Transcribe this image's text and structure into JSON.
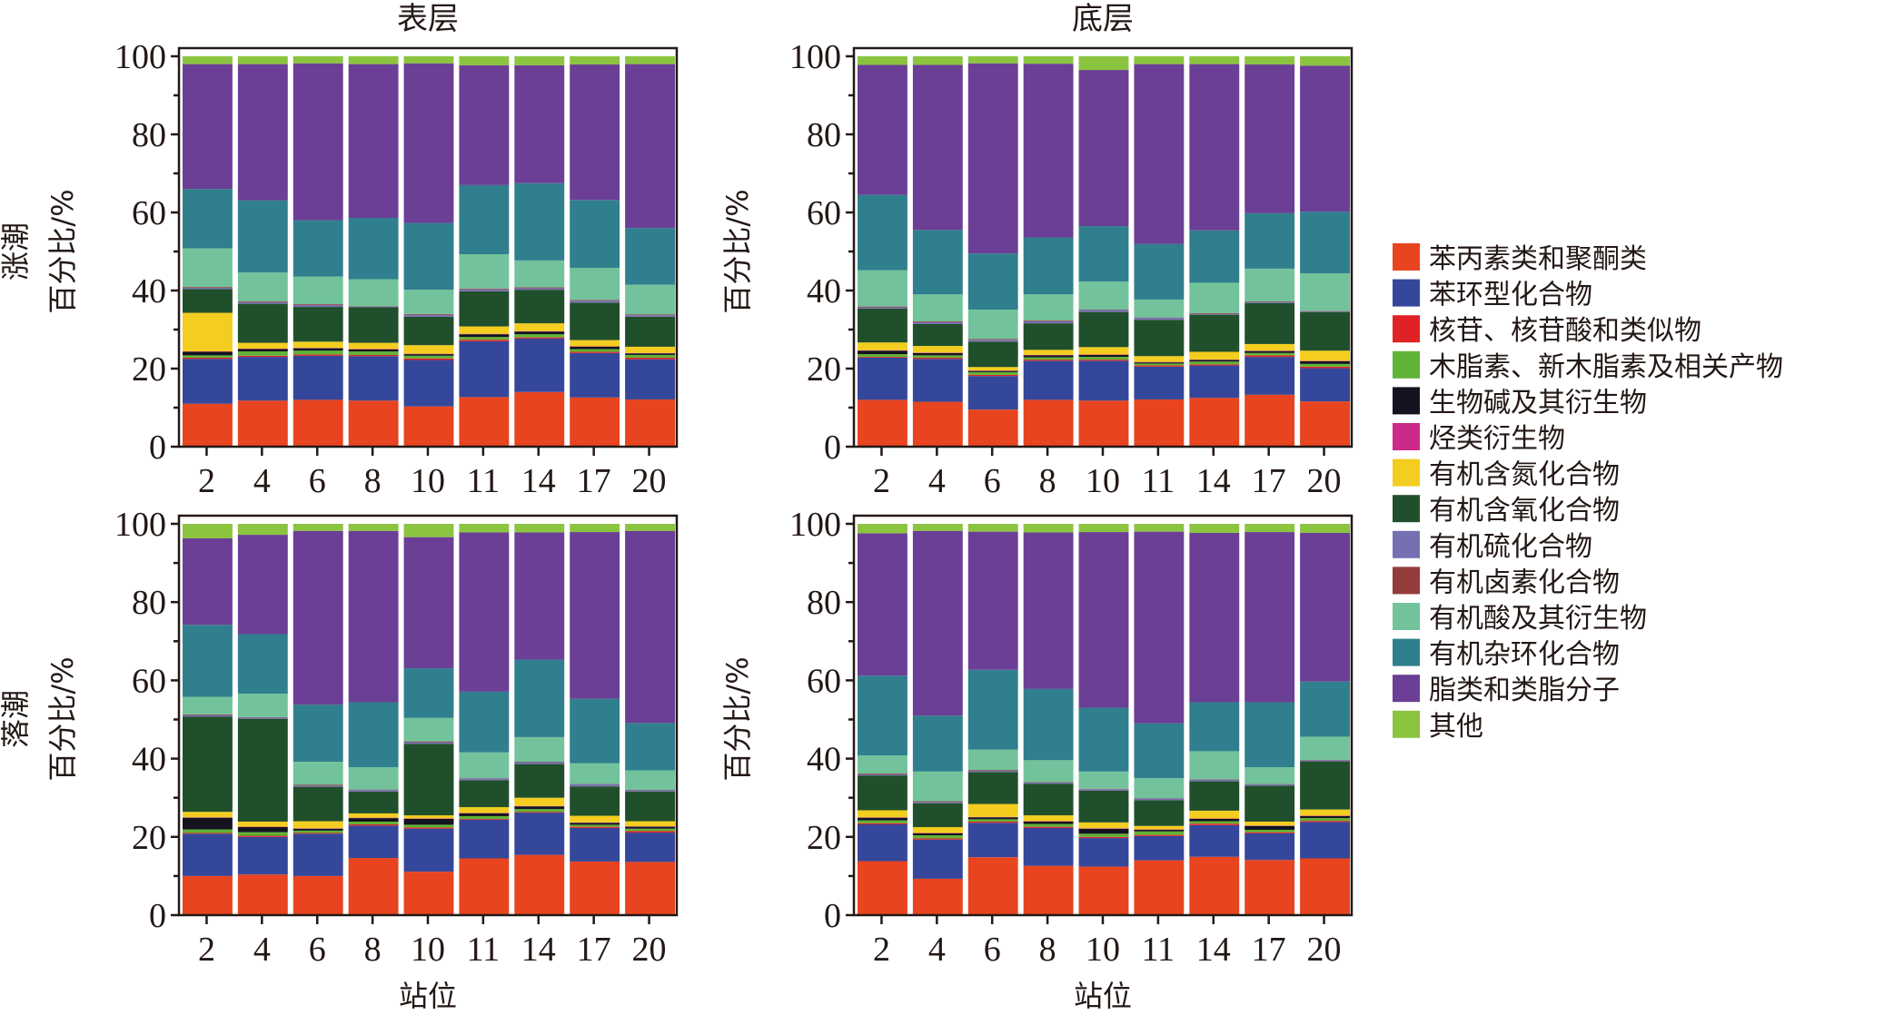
{
  "chart_data": {
    "type": "bar",
    "stacked": true,
    "normalized": true,
    "categories": [
      "2",
      "4",
      "6",
      "8",
      "10",
      "11",
      "14",
      "17",
      "20"
    ],
    "xlabel": "站位",
    "ylabel": "百分比/%",
    "ylim": [
      0,
      100
    ],
    "yticks": [
      "0",
      "20",
      "40",
      "60",
      "80",
      "100"
    ],
    "grid": false,
    "legend_position": "right",
    "column_titles": [
      "表层",
      "底层"
    ],
    "row_titles": [
      "涨潮",
      "落潮"
    ],
    "series_names": [
      "苯丙素类和聚酮类",
      "苯环型化合物",
      "核苷、核苷酸和类似物",
      "木脂素、新木脂素及相关产物",
      "生物碱及其衍生物",
      "烃类衍生物",
      "有机含氮化合物",
      "有机含氧化合物",
      "有机硫化合物",
      "有机卤素化合物",
      "有机酸及其衍生物",
      "有机杂环化合物",
      "脂类和类脂分子",
      "其他"
    ],
    "series_colors": [
      "#e8441f",
      "#35479a",
      "#e02226",
      "#5fb336",
      "#14131f",
      "#cc2a8a",
      "#f3cd1f",
      "#20502b",
      "#7570b2",
      "#933c3b",
      "#72c39b",
      "#307f8e",
      "#6b3f95",
      "#8bc43f"
    ],
    "panels": [
      {
        "title": "涨潮-表层",
        "row": "涨潮",
        "column": "表层",
        "stations": [
          [
            11.0,
            11.5,
            0.3,
            0.6,
            0.9,
            0.1,
            9.9,
            6.1,
            0.3,
            0.2,
            9.9,
            15.2,
            32.0,
            2.0
          ],
          [
            11.8,
            11.2,
            0.3,
            1.1,
            0.6,
            0.1,
            1.5,
            10.0,
            0.4,
            0.2,
            7.4,
            18.5,
            34.9,
            2.0
          ],
          [
            12.0,
            11.3,
            0.3,
            1.0,
            0.6,
            0.1,
            1.6,
            8.9,
            0.5,
            0.2,
            7.1,
            14.4,
            40.2,
            1.8
          ],
          [
            11.8,
            11.4,
            0.3,
            0.9,
            0.5,
            0.1,
            1.6,
            9.1,
            0.2,
            0.1,
            6.9,
            15.7,
            39.4,
            2.0
          ],
          [
            10.3,
            11.9,
            0.4,
            0.7,
            0.4,
            0.1,
            2.2,
            7.3,
            0.5,
            0.2,
            6.2,
            17.1,
            40.9,
            1.8
          ],
          [
            12.7,
            14.3,
            0.4,
            0.7,
            0.7,
            0.1,
            1.9,
            9.0,
            0.5,
            0.2,
            8.8,
            17.7,
            30.7,
            2.3
          ],
          [
            14.0,
            13.7,
            0.3,
            0.8,
            0.7,
            0.1,
            2.0,
            8.6,
            0.4,
            0.2,
            6.9,
            19.8,
            30.2,
            2.3
          ],
          [
            12.6,
            11.4,
            0.3,
            0.7,
            0.6,
            0.1,
            1.6,
            9.6,
            0.5,
            0.2,
            8.2,
            17.4,
            34.7,
            2.1
          ],
          [
            12.1,
            10.3,
            0.4,
            0.7,
            0.4,
            0.1,
            1.6,
            7.7,
            0.4,
            0.2,
            7.6,
            14.5,
            42.0,
            2.0
          ]
        ]
      },
      {
        "title": "涨潮-底层",
        "row": "涨潮",
        "column": "底层",
        "stations": [
          [
            12.0,
            10.8,
            0.2,
            0.7,
            0.9,
            0.1,
            2.0,
            8.7,
            0.3,
            0.2,
            9.3,
            19.3,
            33.3,
            2.2
          ],
          [
            11.5,
            11.0,
            0.3,
            0.6,
            0.6,
            0.1,
            1.7,
            5.6,
            0.5,
            0.2,
            6.9,
            16.5,
            42.3,
            2.2
          ],
          [
            9.5,
            8.6,
            0.3,
            0.7,
            0.3,
            0.1,
            0.9,
            6.5,
            0.5,
            0.2,
            7.5,
            14.4,
            48.7,
            1.8
          ],
          [
            12.0,
            10.0,
            0.3,
            0.6,
            0.5,
            0.1,
            1.3,
            6.8,
            0.5,
            0.2,
            6.7,
            14.6,
            44.5,
            1.9
          ],
          [
            11.8,
            10.2,
            0.3,
            0.7,
            0.5,
            0.1,
            1.9,
            9.0,
            0.5,
            0.1,
            7.2,
            14.2,
            40.0,
            3.5
          ],
          [
            12.1,
            8.4,
            0.3,
            0.5,
            0.3,
            0.1,
            1.5,
            9.3,
            0.5,
            0.1,
            4.6,
            14.2,
            46.1,
            2.0
          ],
          [
            12.5,
            8.3,
            0.3,
            0.7,
            0.4,
            0.1,
            2.0,
            9.5,
            0.2,
            0.2,
            7.8,
            13.4,
            42.6,
            2.0
          ],
          [
            13.3,
            9.7,
            0.4,
            0.6,
            0.5,
            0.1,
            1.7,
            10.5,
            0.3,
            0.1,
            8.4,
            14.2,
            38.1,
            2.1
          ],
          [
            11.6,
            8.5,
            0.4,
            0.7,
            0.7,
            0.1,
            2.6,
            9.9,
            0.2,
            0.1,
            9.6,
            15.8,
            37.4,
            2.4
          ]
        ]
      },
      {
        "title": "落潮-表层",
        "row": "落潮",
        "column": "表层",
        "stations": [
          [
            10.0,
            10.8,
            0.2,
            0.9,
            3.0,
            0.1,
            1.4,
            24.3,
            0.4,
            0.2,
            4.5,
            18.4,
            22.1,
            3.7
          ],
          [
            10.4,
            9.6,
            0.3,
            0.9,
            1.3,
            0.1,
            1.3,
            26.3,
            0.3,
            0.1,
            6.0,
            15.2,
            25.4,
            2.8
          ],
          [
            10.0,
            10.8,
            0.2,
            0.6,
            0.5,
            0.1,
            1.8,
            8.8,
            0.3,
            0.2,
            5.9,
            14.6,
            44.4,
            1.8
          ],
          [
            14.6,
            8.3,
            0.3,
            0.7,
            0.9,
            0.1,
            1.1,
            5.6,
            0.4,
            0.1,
            5.7,
            16.6,
            43.8,
            1.8
          ],
          [
            11.1,
            11.0,
            0.3,
            0.7,
            1.5,
            0.1,
            0.8,
            18.3,
            0.4,
            0.2,
            6.0,
            12.7,
            33.5,
            3.4
          ],
          [
            14.5,
            9.9,
            0.2,
            0.7,
            0.7,
            0.1,
            1.5,
            6.9,
            0.4,
            0.1,
            6.6,
            15.5,
            40.7,
            2.2
          ],
          [
            15.4,
            10.8,
            0.2,
            0.7,
            0.7,
            0.1,
            2.1,
            8.6,
            0.5,
            0.1,
            6.3,
            19.8,
            32.5,
            2.2
          ],
          [
            13.7,
            8.6,
            0.3,
            0.5,
            0.5,
            0.1,
            1.7,
            7.5,
            0.5,
            0.1,
            5.3,
            16.5,
            42.6,
            2.1
          ],
          [
            13.6,
            7.5,
            0.4,
            0.6,
            0.5,
            0.1,
            1.3,
            7.6,
            0.3,
            0.1,
            5.0,
            12.1,
            49.1,
            1.8
          ]
        ]
      },
      {
        "title": "落潮-底层",
        "row": "落潮",
        "column": "底层",
        "stations": [
          [
            13.8,
            9.4,
            0.3,
            0.7,
            0.7,
            0.1,
            1.8,
            8.9,
            0.3,
            0.2,
            4.6,
            20.4,
            36.4,
            2.4
          ],
          [
            9.3,
            10.0,
            0.3,
            0.8,
            0.5,
            0.1,
            1.5,
            6.1,
            0.3,
            0.2,
            7.6,
            14.3,
            47.2,
            1.8
          ],
          [
            14.8,
            8.8,
            0.3,
            0.6,
            0.5,
            0.1,
            3.3,
            8.2,
            0.3,
            0.2,
            5.2,
            20.4,
            35.3,
            2.0
          ],
          [
            12.6,
            9.7,
            0.3,
            0.7,
            0.6,
            0.1,
            1.5,
            8.1,
            0.3,
            0.1,
            5.6,
            18.2,
            40.0,
            2.2
          ],
          [
            12.4,
            7.3,
            0.3,
            0.8,
            1.3,
            0.1,
            1.5,
            8.1,
            0.4,
            0.1,
            4.4,
            16.3,
            44.9,
            2.1
          ],
          [
            14.0,
            6.2,
            0.3,
            0.9,
            0.4,
            0.1,
            0.9,
            6.6,
            0.4,
            0.1,
            5.1,
            14.0,
            49.0,
            2.0
          ],
          [
            14.9,
            8.1,
            0.4,
            0.6,
            0.6,
            0.1,
            2.0,
            7.5,
            0.4,
            0.1,
            7.2,
            12.5,
            43.3,
            2.3
          ],
          [
            14.1,
            6.8,
            0.3,
            0.6,
            1.0,
            0.1,
            1.0,
            9.2,
            0.3,
            0.1,
            4.3,
            16.6,
            43.5,
            2.1
          ],
          [
            14.5,
            9.3,
            0.3,
            0.7,
            0.5,
            0.1,
            1.6,
            12.3,
            0.3,
            0.1,
            5.9,
            14.1,
            38.0,
            2.3
          ]
        ]
      }
    ]
  },
  "labels": {
    "col_title_left": "表层",
    "col_title_right": "底层",
    "row_title_top": "涨潮",
    "row_title_bottom": "落潮",
    "ylabel": "百分比/%",
    "xlabel": "站位"
  }
}
